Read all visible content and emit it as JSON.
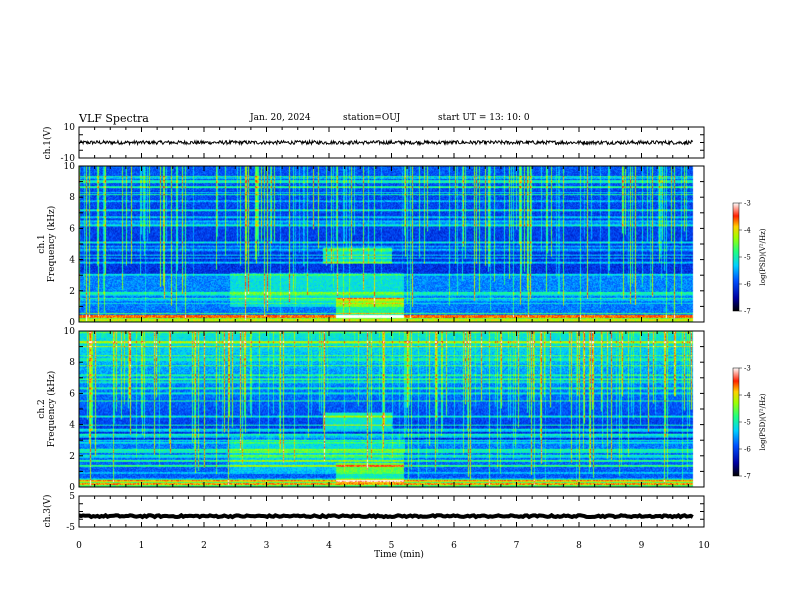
{
  "header": {
    "title": "VLF Spectra",
    "date": "Jan. 20, 2024",
    "station": "station=OUJ",
    "start": "start UT =   13: 10: 0"
  },
  "chart_data": [
    {
      "type": "line",
      "name": "ch1-voltage",
      "ylabel": "ch.1(V)",
      "ylim": [
        -10,
        10
      ],
      "yticks": [
        "10",
        "-10"
      ],
      "xlim": [
        0,
        10
      ],
      "trace_level": 0,
      "noise_amplitude": 1.2
    },
    {
      "type": "heatmap",
      "name": "ch1-spectrogram",
      "ylabel": "ch.1\nFrequency (kHz)",
      "ylim": [
        0,
        10
      ],
      "yticks": [
        "0",
        "2",
        "4",
        "6",
        "8",
        "10"
      ],
      "xlim": [
        0,
        10
      ],
      "colorbar": {
        "label": "log(PSD)(V²/Hz)",
        "range": [
          -7,
          -3
        ],
        "ticks": [
          "-3",
          "-4",
          "-5",
          "-6",
          "-7"
        ]
      }
    },
    {
      "type": "heatmap",
      "name": "ch2-spectrogram",
      "ylabel": "ch.2\nFrequency (kHz)",
      "ylim": [
        0,
        10
      ],
      "yticks": [
        "0",
        "2",
        "4",
        "6",
        "8",
        "10"
      ],
      "xlim": [
        0,
        10
      ],
      "colorbar": {
        "label": "log(PSD)(V²/Hz)",
        "range": [
          -7,
          -3
        ],
        "ticks": [
          "-3",
          "-4",
          "-5",
          "-6",
          "-7"
        ]
      }
    },
    {
      "type": "line",
      "name": "ch3-voltage",
      "ylabel": "ch.3(V)",
      "ylim": [
        -5,
        5
      ],
      "yticks": [
        "5",
        "-5"
      ],
      "xlim": [
        0,
        10
      ],
      "trace_level": -1.5,
      "noise_amplitude": 0.3
    }
  ],
  "xaxis": {
    "label": "Time (min)",
    "ticks": [
      "0",
      "1",
      "2",
      "3",
      "4",
      "5",
      "6",
      "7",
      "8",
      "9",
      "10"
    ],
    "data_end": 9.82
  },
  "colors": {
    "trace": "#000000",
    "grid_lines": "#000000"
  }
}
